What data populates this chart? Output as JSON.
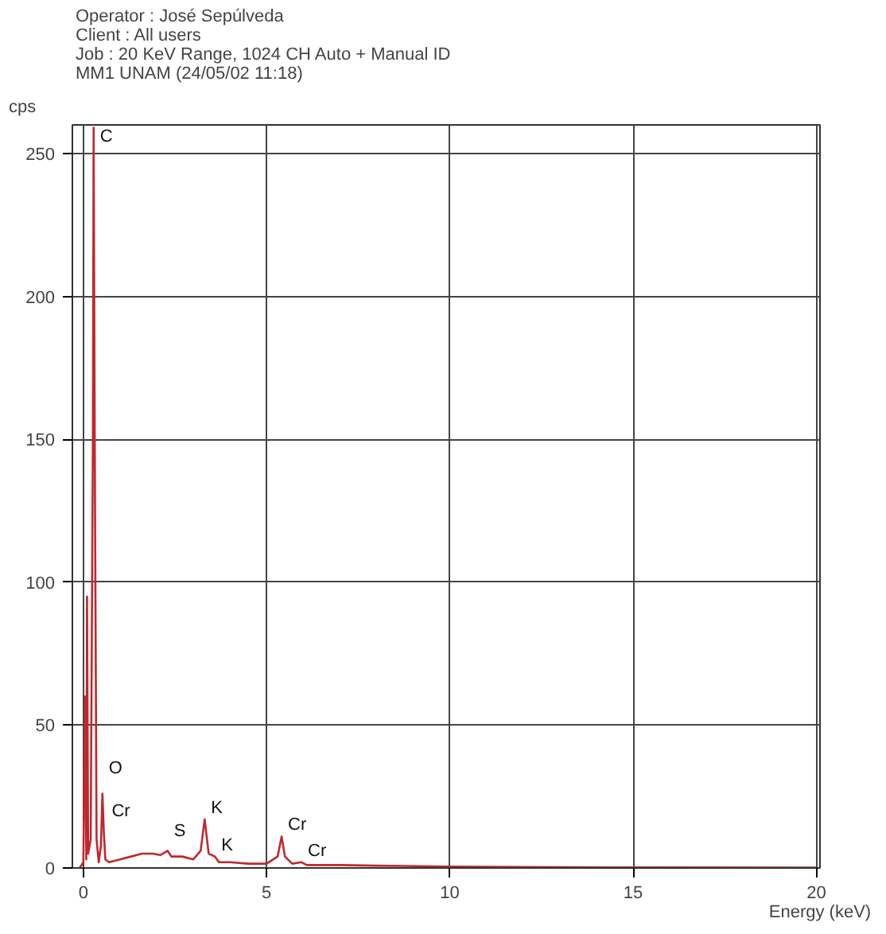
{
  "chart_data": {
    "type": "line",
    "title": "Operator : José Sepúlveda\nClient : All users\nJob : 20 KeV Range, 1024 CH  Auto + Manual ID\nMM1 UNAM (24/05/02 11:18)",
    "xlabel": "Energy (keV)",
    "ylabel": "cps",
    "xlim": [
      -0.3,
      20.1
    ],
    "ylim": [
      0,
      260
    ],
    "xticks": [
      0,
      5,
      10,
      15,
      20
    ],
    "yticks": [
      0,
      50,
      100,
      150,
      200,
      250
    ],
    "grid": true,
    "marker": "none",
    "line_style": "solid",
    "series": [
      {
        "color": "#c0282d",
        "x": [
          -0.1,
          0.0,
          0.05,
          0.08,
          0.1,
          0.13,
          0.2,
          0.26,
          0.28,
          0.31,
          0.36,
          0.42,
          0.48,
          0.52,
          0.56,
          0.6,
          0.7,
          1.0,
          1.3,
          1.6,
          1.9,
          2.1,
          2.3,
          2.4,
          2.7,
          3.0,
          3.2,
          3.31,
          3.42,
          3.59,
          3.7,
          4.0,
          4.5,
          5.0,
          5.3,
          5.41,
          5.5,
          5.7,
          5.95,
          6.1,
          7,
          8,
          10,
          12,
          15,
          20
        ],
        "values": [
          0,
          2,
          60,
          3,
          95,
          5,
          10,
          150,
          259,
          150,
          10,
          2,
          8,
          26,
          12,
          3,
          2,
          3,
          4,
          5,
          5,
          4.5,
          6,
          4,
          4,
          3,
          6,
          17,
          5,
          4,
          2,
          2,
          1.5,
          1.5,
          4,
          11,
          4,
          1.5,
          2,
          1,
          1,
          0.8,
          0.5,
          0.3,
          0.2,
          0.1
        ]
      }
    ],
    "annotations": [
      {
        "text": "C",
        "x": 0.28,
        "y": 252
      },
      {
        "text": "O",
        "x": 0.52,
        "y": 31
      },
      {
        "text": "Cr",
        "x": 0.6,
        "y": 16
      },
      {
        "text": "S",
        "x": 2.3,
        "y": 9
      },
      {
        "text": "K",
        "x": 3.31,
        "y": 17
      },
      {
        "text": "K",
        "x": 3.59,
        "y": 4
      },
      {
        "text": "Cr",
        "x": 5.41,
        "y": 11
      },
      {
        "text": "Cr",
        "x": 5.95,
        "y": 2
      }
    ]
  }
}
